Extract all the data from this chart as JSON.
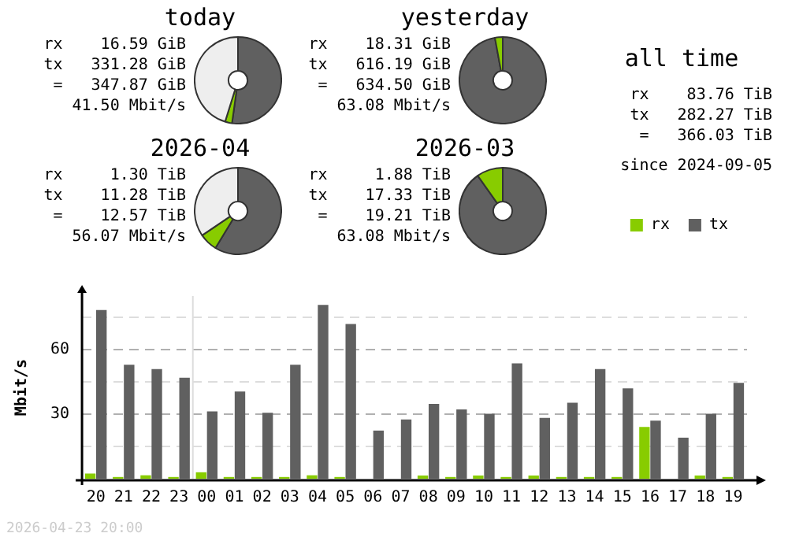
{
  "chart_data": [
    {
      "type": "donut",
      "title": "today",
      "categories": [
        null,
        null,
        null
      ],
      "values": [
        52.2,
        2.6,
        45.2
      ],
      "colors": [
        "#606060",
        "#88cc00",
        "#eeeeee"
      ],
      "legend": false,
      "annotations": [
        "rx    16.59 GiB",
        "tx   331.28 GiB",
        " =   347.87 GiB",
        "41.50 Mbit/s"
      ]
    },
    {
      "type": "donut",
      "title": "yesterday",
      "categories": [
        null,
        null
      ],
      "values": [
        97.1,
        2.9
      ],
      "colors": [
        "#606060",
        "#88cc00"
      ],
      "legend": false,
      "annotations": [
        "rx    18.31 GiB",
        "tx   616.19 GiB",
        " =   634.50 GiB",
        "63.08 Mbit/s"
      ]
    },
    {
      "type": "donut",
      "title": "2026-04",
      "categories": [
        null,
        null,
        null
      ],
      "values": [
        58.7,
        6.8,
        34.5
      ],
      "colors": [
        "#606060",
        "#88cc00",
        "#eeeeee"
      ],
      "legend": false,
      "annotations": [
        "rx     1.30 TiB",
        "tx    11.28 TiB",
        " =    12.57 TiB",
        "56.07 Mbit/s"
      ]
    },
    {
      "type": "donut",
      "title": "2026-03",
      "categories": [
        null,
        null
      ],
      "values": [
        90.2,
        9.8
      ],
      "colors": [
        "#606060",
        "#88cc00"
      ],
      "legend": false,
      "annotations": [
        "rx     1.88 TiB",
        "tx    17.33 TiB",
        " =    19.21 TiB",
        "63.08 Mbit/s"
      ]
    },
    {
      "type": "other",
      "title": "all time",
      "annotations": [
        "rx    83.76 TiB",
        "tx   282.27 TiB",
        " =   366.03 TiB",
        "since 2024-09-05"
      ]
    },
    {
      "type": "bar",
      "ylabel": "Mbit/s",
      "categories": [
        "20",
        "21",
        "22",
        "23",
        "00",
        "01",
        "02",
        "03",
        "04",
        "05",
        "06",
        "07",
        "08",
        "09",
        "10",
        "11",
        "12",
        "13",
        "14",
        "15",
        "16",
        "17",
        "18",
        "19"
      ],
      "series": [
        {
          "name": "rx",
          "color": "#88cc00",
          "values": [
            2.4,
            0.8,
            1.6,
            0.8,
            3,
            0.8,
            0.8,
            0.8,
            1.6,
            0.8,
            0,
            0,
            1.5,
            0.8,
            1.5,
            0.8,
            1.5,
            0.8,
            0.8,
            0.8,
            24.1,
            0,
            1.5,
            0.8
          ]
        },
        {
          "name": "tx",
          "color": "#606060",
          "values": [
            78.5,
            53,
            51,
            47,
            31.3,
            40.6,
            30.7,
            53,
            80.9,
            72,
            22.4,
            27.6,
            34.8,
            32.2,
            30.2,
            53.7,
            28.3,
            35.4,
            51,
            42,
            27,
            19.1,
            30.2,
            44.6
          ]
        }
      ],
      "ylim": [
        0,
        85
      ],
      "yticks": [
        {
          "value": 15,
          "label": null
        },
        30,
        {
          "value": 45,
          "label": null
        },
        60,
        {
          "value": 75,
          "label": null
        }
      ],
      "grid": "y",
      "legend": "top right",
      "ref_lines": [
        {
          "axis": "x",
          "value": "00",
          "color": "#dddddd"
        }
      ],
      "annotations": [
        "2026-04-23 20:00"
      ]
    }
  ]
}
